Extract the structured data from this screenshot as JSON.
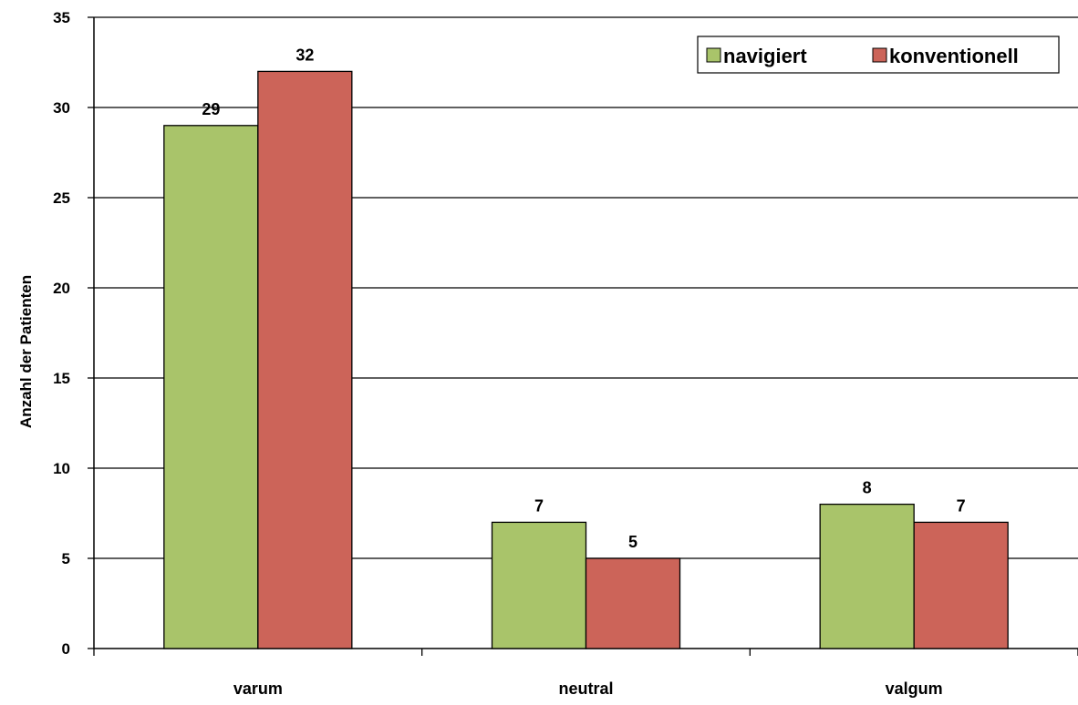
{
  "chart_data": {
    "type": "bar",
    "categories": [
      "varum",
      "neutral",
      "valgum"
    ],
    "series": [
      {
        "name": "navigiert",
        "values": [
          29,
          7,
          8
        ],
        "color": "#a9c46a"
      },
      {
        "name": "konventionell",
        "values": [
          32,
          5,
          7
        ],
        "color": "#cc6459"
      }
    ],
    "title": "",
    "xlabel": "",
    "ylabel": "Anzahl der Patienten",
    "ylim": [
      0,
      35
    ],
    "yticks": [
      0,
      5,
      10,
      15,
      20,
      25,
      30,
      35
    ],
    "data_labels": true,
    "grid": true,
    "legend_position": "top-right"
  }
}
